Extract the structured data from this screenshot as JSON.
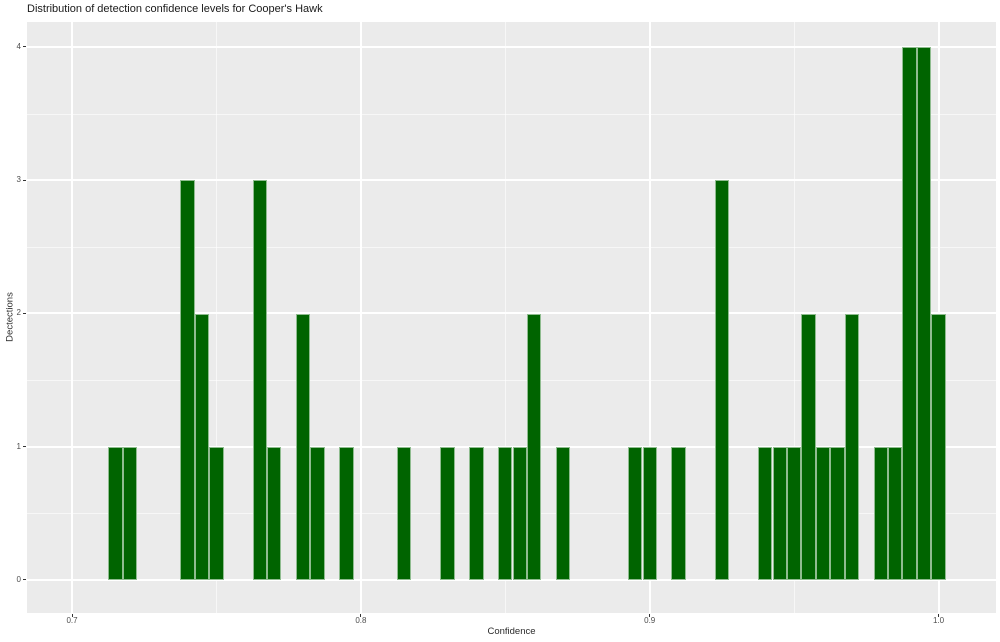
{
  "title": "Distribution of detection confidence levels for Cooper's Hawk",
  "chart_data": {
    "type": "bar",
    "subtype": "histogram",
    "title": "Distribution of detection confidence levels for Cooper's Hawk",
    "xlabel": "Confidence",
    "ylabel": "Dectections",
    "x_ticks": [
      0.7,
      0.8,
      0.9,
      1.0
    ],
    "x_tick_labels": [
      "0.7",
      "0.8",
      "0.9",
      "1.0"
    ],
    "x_minor_ticks": [
      0.75,
      0.85,
      0.95
    ],
    "y_ticks": [
      0,
      1,
      2,
      3,
      4
    ],
    "y_tick_labels": [
      "0",
      "1",
      "2",
      "3",
      "4"
    ],
    "y_minor_ticks": [
      0.5,
      1.5,
      2.5,
      3.5
    ],
    "xlim": [
      0.6844,
      1.0199
    ],
    "ylim": [
      -0.2477,
      4.1876
    ],
    "bin_width": 0.005,
    "grid": true,
    "legend_position": "none",
    "bins": [
      {
        "center": 0.715,
        "count": 1
      },
      {
        "center": 0.72,
        "count": 1
      },
      {
        "center": 0.74,
        "count": 3
      },
      {
        "center": 0.745,
        "count": 2
      },
      {
        "center": 0.75,
        "count": 1
      },
      {
        "center": 0.765,
        "count": 3
      },
      {
        "center": 0.77,
        "count": 1
      },
      {
        "center": 0.78,
        "count": 2
      },
      {
        "center": 0.785,
        "count": 1
      },
      {
        "center": 0.795,
        "count": 1
      },
      {
        "center": 0.815,
        "count": 1
      },
      {
        "center": 0.83,
        "count": 1
      },
      {
        "center": 0.84,
        "count": 1
      },
      {
        "center": 0.85,
        "count": 1
      },
      {
        "center": 0.855,
        "count": 1
      },
      {
        "center": 0.86,
        "count": 2
      },
      {
        "center": 0.87,
        "count": 1
      },
      {
        "center": 0.895,
        "count": 1
      },
      {
        "center": 0.9,
        "count": 1
      },
      {
        "center": 0.91,
        "count": 1
      },
      {
        "center": 0.925,
        "count": 3
      },
      {
        "center": 0.94,
        "count": 1
      },
      {
        "center": 0.945,
        "count": 1
      },
      {
        "center": 0.95,
        "count": 1
      },
      {
        "center": 0.955,
        "count": 2
      },
      {
        "center": 0.96,
        "count": 1
      },
      {
        "center": 0.965,
        "count": 1
      },
      {
        "center": 0.97,
        "count": 2
      },
      {
        "center": 0.98,
        "count": 1
      },
      {
        "center": 0.985,
        "count": 1
      },
      {
        "center": 0.99,
        "count": 4
      },
      {
        "center": 0.995,
        "count": 4
      },
      {
        "center": 1.0,
        "count": 2
      }
    ],
    "colors": {
      "bar_fill": "#006400",
      "bar_edge": "#8fbc8f",
      "panel_background": "#ebebeb",
      "grid_major": "#ffffff",
      "grid_minor": "#f5f5f5",
      "tick_text": "#4d4d4d",
      "axis_label_text": "#2b2b2b",
      "title_text": "#1a1a1a",
      "page_background": "#ffffff"
    }
  }
}
